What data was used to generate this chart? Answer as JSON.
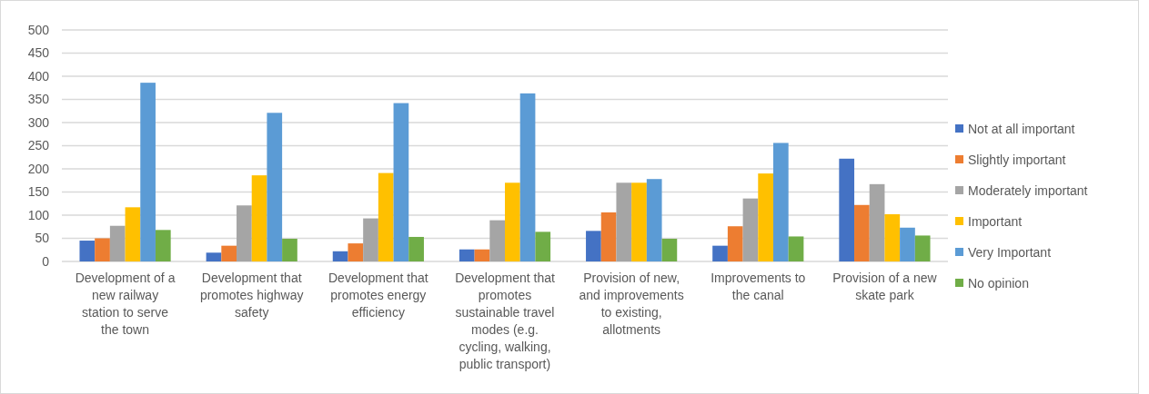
{
  "chart_data": {
    "type": "bar",
    "categories": [
      "Development of a new railway station to serve the town",
      "Development that promotes highway safety",
      "Development that promotes energy efficiency",
      "Development that promotes sustainable travel modes (e.g. cycling, walking, public transport)",
      "Provision of new, and improvements to existing, allotments",
      "Improvements to the canal",
      "Provision of a new skate park"
    ],
    "series": [
      {
        "name": "Not at all important",
        "color": "#4472c4",
        "values": [
          45,
          19,
          22,
          26,
          66,
          34,
          222
        ]
      },
      {
        "name": "Slightly important",
        "color": "#ed7d31",
        "values": [
          50,
          34,
          39,
          26,
          106,
          76,
          122
        ]
      },
      {
        "name": "Moderately important",
        "color": "#a5a5a5",
        "values": [
          77,
          121,
          93,
          89,
          170,
          136,
          167
        ]
      },
      {
        "name": "Important",
        "color": "#ffc000",
        "values": [
          117,
          186,
          191,
          170,
          170,
          190,
          102
        ]
      },
      {
        "name": "Very Important",
        "color": "#5b9bd5",
        "values": [
          386,
          321,
          342,
          363,
          178,
          256,
          73
        ]
      },
      {
        "name": "No opinion",
        "color": "#70ad47",
        "values": [
          68,
          49,
          53,
          64,
          49,
          54,
          56
        ]
      }
    ],
    "ylim": [
      0,
      500
    ],
    "yticks": [
      0,
      50,
      100,
      150,
      200,
      250,
      300,
      350,
      400,
      450,
      500
    ],
    "grid": "y",
    "legend": "right"
  }
}
